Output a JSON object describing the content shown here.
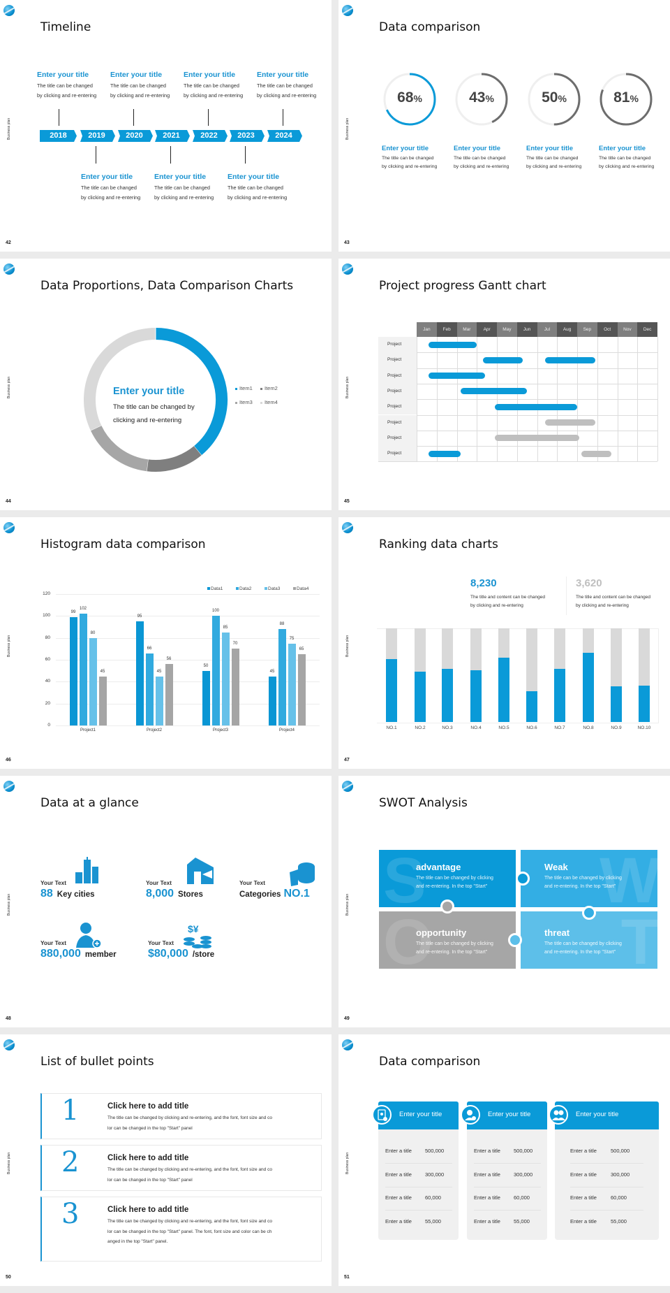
{
  "deck": {
    "footer_label": "Business plan",
    "accent": "#0a9ad8"
  },
  "slides": {
    "s42": {
      "page": "42",
      "title": "Timeline",
      "years": [
        "2018",
        "2019",
        "2020",
        "2021",
        "2022",
        "2023",
        "2024"
      ],
      "top_items": [
        {
          "title": "Enter your title",
          "line1": "The title can be changed",
          "line2": "by clicking and re-entering"
        },
        {
          "title": "Enter your title",
          "line1": "The title can be changed",
          "line2": "by clicking and re-entering"
        },
        {
          "title": "Enter your title",
          "line1": "The title can be changed",
          "line2": "by clicking and re-entering"
        },
        {
          "title": "Enter your title",
          "line1": "The title can be changed",
          "line2": "by clicking and re-entering"
        }
      ],
      "bottom_items": [
        {
          "title": "Enter your title",
          "line1": "The title can be changed",
          "line2": "by clicking and re-entering"
        },
        {
          "title": "Enter your title",
          "line1": "The title can be changed",
          "line2": "by clicking and re-entering"
        },
        {
          "title": "Enter your title",
          "line1": "The title can be changed",
          "line2": "by clicking and re-entering"
        }
      ]
    },
    "s43": {
      "page": "43",
      "title": "Data comparison",
      "rings": [
        {
          "value": 68,
          "number": "68",
          "unit": "%",
          "color": "#0a9ad8",
          "title": "Enter your title",
          "line1": "The title can be changed",
          "line2": "by clicking and re-entering"
        },
        {
          "value": 43,
          "number": "43",
          "unit": "%",
          "color": "#6d6d6d",
          "title": "Enter your title",
          "line1": "The title can be changed",
          "line2": "by clicking and re-entering"
        },
        {
          "value": 50,
          "number": "50",
          "unit": "%",
          "color": "#6d6d6d",
          "title": "Enter your title",
          "line1": "The title can be changed",
          "line2": "by clicking and re-entering"
        },
        {
          "value": 81,
          "number": "81",
          "unit": "%",
          "color": "#6d6d6d",
          "title": "Enter your title",
          "line1": "The title can be changed",
          "line2": "by clicking and re-entering"
        }
      ]
    },
    "s44": {
      "page": "44",
      "title": "Data Proportions, Data Comparison Charts",
      "center_title": "Enter your title",
      "center_line1": "The title can be changed by",
      "center_line2": "clicking and re-entering"
    },
    "s45": {
      "page": "45",
      "title": "Project progress Gantt chart"
    },
    "s46": {
      "page": "46",
      "title": "Histogram data comparison"
    },
    "s47": {
      "page": "47",
      "title": "Ranking data charts",
      "stats": [
        {
          "value": "8,230",
          "color": "#1a93d1",
          "line1": "The title and content can be changed",
          "line2": "by clicking and re-entering"
        },
        {
          "value": "3,620",
          "color": "#bfbfbf",
          "line1": "The title and content can be changed",
          "line2": "by clicking and re-entering"
        }
      ]
    },
    "s48": {
      "page": "48",
      "title": "Data at a glance",
      "items": [
        {
          "label": "Your Text",
          "number": "88",
          "unit": "Key cities",
          "icon": "city-buildings-icon"
        },
        {
          "label": "Your Text",
          "number": "8,000",
          "unit": "Stores",
          "icon": "store-icon"
        },
        {
          "label": "Your Text",
          "prefix": "Categories",
          "number": "NO.1",
          "icon": "category-box-icon"
        },
        {
          "label": "Your Text",
          "number": "880,000",
          "unit": "member",
          "icon": "add-member-icon"
        },
        {
          "label": "Your Text",
          "number": "$80,000",
          "unit": "/store",
          "icon": "coins-icon"
        }
      ]
    },
    "s49": {
      "page": "49",
      "title": "SWOT Analysis",
      "tiles": [
        {
          "letter": "S",
          "title": "advantage",
          "line1": "The title can be changed by clicking",
          "line2": "and re-entering. In the top \"Start\"",
          "color": "#0a9ad8"
        },
        {
          "letter": "W",
          "title": "Weak",
          "line1": "The title can be changed by clicking",
          "line2": "and re-entering. In the top \"Start\"",
          "color": "#33aee4"
        },
        {
          "letter": "O",
          "title": "opportunity",
          "line1": "The title can be changed by clicking",
          "line2": "and re-entering. In the top \"Start\"",
          "color": "#a6a6a6"
        },
        {
          "letter": "T",
          "title": "threat",
          "line1": "The title can be changed by clicking",
          "line2": "and re-entering. In the top \"Start\"",
          "color": "#5dbfe9"
        }
      ]
    },
    "s50": {
      "page": "50",
      "title": "List of bullet points",
      "cards": [
        {
          "number": "1",
          "title": "Click here to add title",
          "lines": [
            "The title can be changed by clicking and re-entering, and the font, font size and co",
            "lor can be changed in the top \"Start\" panel"
          ]
        },
        {
          "number": "2",
          "title": "Click here to add title",
          "lines": [
            "The title can be changed by clicking and re-entering, and the font, font size and co",
            "lor can be changed in the top \"Start\" panel"
          ]
        },
        {
          "number": "3",
          "title": "Click here to add title",
          "lines": [
            "The title can be changed by clicking and re-entering, and the font, font size and co",
            "lor can be changed in the top \"Start\" panel. The font, font size and color can be ch",
            "anged in the top \"Start\" panel."
          ]
        }
      ]
    },
    "s51": {
      "page": "51",
      "title": "Data comparison",
      "columns": [
        {
          "header": "Enter your title",
          "icon": "phone-user-icon",
          "rows": [
            {
              "label": "Enter a title",
              "value": "500,000"
            },
            {
              "label": "Enter a title",
              "value": "300,000"
            },
            {
              "label": "Enter a title",
              "value": "60,000"
            },
            {
              "label": "Enter a title",
              "value": "55,000"
            }
          ]
        },
        {
          "header": "Enter your title",
          "icon": "user-add-icon",
          "rows": [
            {
              "label": "Enter a title",
              "value": "500,000"
            },
            {
              "label": "Enter a title",
              "value": "300,000"
            },
            {
              "label": "Enter a title",
              "value": "60,000"
            },
            {
              "label": "Enter a title",
              "value": "55,000"
            }
          ]
        },
        {
          "header": "Enter your title",
          "icon": "team-icon",
          "rows": [
            {
              "label": "Enter a title",
              "value": "500,000"
            },
            {
              "label": "Enter a title",
              "value": "300,000"
            },
            {
              "label": "Enter a title",
              "value": "60,000"
            },
            {
              "label": "Enter a title",
              "value": "55,000"
            }
          ]
        }
      ]
    }
  },
  "chart_data": [
    {
      "type": "pie",
      "variant": "donut",
      "categories": [
        "Item1",
        "Item2",
        "Item3",
        "Item4"
      ],
      "values": [
        39,
        13,
        16,
        32
      ],
      "colors": [
        "#0a9ad8",
        "#7f7f7f",
        "#a6a6a6",
        "#d9d9d9"
      ],
      "legend": "right"
    },
    {
      "type": "gantt",
      "categories": [
        "Jan",
        "Feb",
        "Mar",
        "Apr",
        "May",
        "Jun",
        "Jul",
        "Aug",
        "Sep",
        "Oct",
        "Nov",
        "Dec"
      ],
      "rows": [
        {
          "label": "Project",
          "bars": [
            {
              "start": 0.6,
              "end": 3.0,
              "color": "#0a9ad8"
            }
          ]
        },
        {
          "label": "Project",
          "bars": [
            {
              "start": 3.3,
              "end": 5.3,
              "color": "#0a9ad8"
            },
            {
              "start": 6.4,
              "end": 8.9,
              "color": "#0a9ad8"
            }
          ]
        },
        {
          "label": "Project",
          "bars": [
            {
              "start": 0.6,
              "end": 3.4,
              "color": "#0a9ad8"
            }
          ]
        },
        {
          "label": "Project",
          "bars": [
            {
              "start": 2.2,
              "end": 5.5,
              "color": "#0a9ad8"
            }
          ]
        },
        {
          "label": "Project",
          "bars": [
            {
              "start": 3.9,
              "end": 8.0,
              "color": "#0a9ad8"
            }
          ]
        },
        {
          "label": "Project",
          "bars": [
            {
              "start": 6.4,
              "end": 8.9,
              "color": "#bfbfbf"
            }
          ]
        },
        {
          "label": "Project",
          "bars": [
            {
              "start": 3.9,
              "end": 8.1,
              "color": "#bfbfbf"
            }
          ]
        },
        {
          "label": "Project",
          "bars": [
            {
              "start": 0.6,
              "end": 2.2,
              "color": "#0a9ad8"
            },
            {
              "start": 8.2,
              "end": 9.7,
              "color": "#bfbfbf"
            }
          ]
        }
      ]
    },
    {
      "type": "bar",
      "categories": [
        "Project1",
        "Project2",
        "Project3",
        "Project4"
      ],
      "series": [
        {
          "name": "Data1",
          "values": [
            99,
            95,
            50,
            45
          ],
          "color": "#0a96d4"
        },
        {
          "name": "Data2",
          "values": [
            102,
            66,
            100,
            88
          ],
          "color": "#31aadf"
        },
        {
          "name": "Data3",
          "values": [
            80,
            45,
            85,
            75
          ],
          "color": "#66c1e9"
        },
        {
          "name": "Data4",
          "values": [
            45,
            56,
            70,
            65
          ],
          "color": "#a5a5a5"
        }
      ],
      "yticks": [
        "0",
        "20",
        "40",
        "60",
        "80",
        "100",
        "120"
      ],
      "ylim": [
        0,
        120
      ],
      "grid": true,
      "legend": "top-right",
      "data_labels": true
    },
    {
      "type": "bar",
      "stacked": true,
      "categories": [
        "NO.1",
        "NO.2",
        "NO.3",
        "NO.4",
        "NO.5",
        "NO.6",
        "NO.7",
        "NO.8",
        "NO.9",
        "NO.10"
      ],
      "values": [
        67,
        54,
        57,
        55,
        69,
        33,
        57,
        74,
        38,
        39
      ],
      "ylim": [
        0,
        100
      ],
      "colors": [
        "#0a9ad8",
        "#d9d9d9"
      ]
    }
  ]
}
